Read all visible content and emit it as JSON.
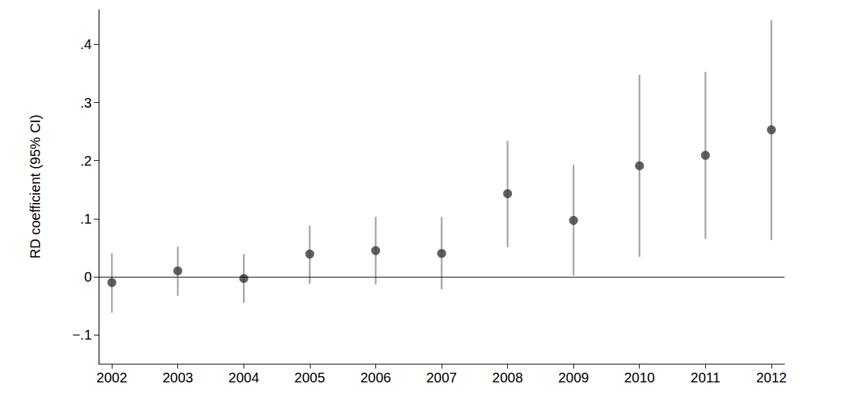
{
  "chart_data": {
    "type": "scatter",
    "y_label": "RD coefficient (95% CI)",
    "x": [
      2002,
      2003,
      2004,
      2005,
      2006,
      2007,
      2008,
      2009,
      2010,
      2011,
      2012
    ],
    "values": [
      -0.01,
      0.01,
      -0.003,
      0.039,
      0.045,
      0.04,
      0.143,
      0.097,
      0.191,
      0.209,
      0.253
    ],
    "ci_lower": [
      -0.062,
      -0.033,
      -0.045,
      -0.012,
      -0.013,
      -0.022,
      0.051,
      0.002,
      0.034,
      0.065,
      0.063
    ],
    "ci_upper": [
      0.04,
      0.052,
      0.039,
      0.088,
      0.103,
      0.103,
      0.234,
      0.193,
      0.348,
      0.353,
      0.442
    ],
    "color": "#3a3a3a",
    "reference_line": 0,
    "xlim": [
      2001.8,
      2012.2
    ],
    "xticks": [
      2002,
      2003,
      2004,
      2005,
      2006,
      2007,
      2008,
      2009,
      2010,
      2011,
      2012
    ],
    "ylim": [
      -0.15,
      0.46
    ],
    "yticks": [
      {
        "value": -0.1,
        "label": "−.1"
      },
      0,
      {
        "value": 0.1,
        "label": ".1"
      },
      {
        "value": 0.2,
        "label": ".2"
      },
      {
        "value": 0.3,
        "label": ".3"
      },
      {
        "value": 0.4,
        "label": ".4"
      }
    ],
    "grid": false
  }
}
